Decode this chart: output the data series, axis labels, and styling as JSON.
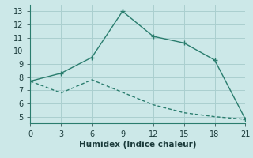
{
  "xlabel": "Humidex (Indice chaleur)",
  "ylabel": "",
  "bg_color": "#cce8e8",
  "grid_color": "#aacfcf",
  "line_color": "#2a7d6e",
  "line1_x": [
    0,
    3,
    6,
    9,
    12,
    15,
    18,
    21
  ],
  "line1_y": [
    7.7,
    8.3,
    9.5,
    13.0,
    11.1,
    10.6,
    9.3,
    4.8
  ],
  "line2_x": [
    0,
    3,
    6,
    12,
    15,
    18,
    21
  ],
  "line2_y": [
    7.7,
    6.8,
    7.8,
    5.9,
    5.3,
    5.0,
    4.8
  ],
  "xlim": [
    0,
    21
  ],
  "ylim": [
    4.5,
    13.5
  ],
  "xticks": [
    0,
    3,
    6,
    9,
    12,
    15,
    18,
    21
  ],
  "yticks": [
    5,
    6,
    7,
    8,
    9,
    10,
    11,
    12,
    13
  ],
  "marker": "+",
  "markersize": 5,
  "linewidth": 1.0,
  "xlabel_fontsize": 7.5,
  "tick_fontsize": 7
}
